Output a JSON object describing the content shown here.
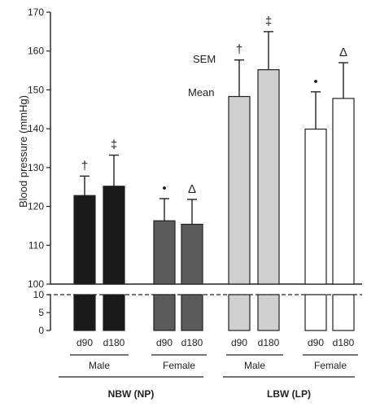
{
  "chart_data": {
    "type": "bar",
    "ylabel": "Blood pressure (mmHg)",
    "yaxis_upper": {
      "min": 100,
      "max": 170,
      "ticks": [
        100,
        110,
        120,
        130,
        140,
        150,
        160,
        170
      ]
    },
    "yaxis_lower": {
      "min": 0,
      "max": 10,
      "ticks": [
        0,
        5,
        10
      ]
    },
    "axis_break": true,
    "annotations": {
      "sem": "SEM",
      "mean": "Mean"
    },
    "groups": [
      {
        "label": "NBW (NP)",
        "subgroups": [
          {
            "label": "Male",
            "bars": [
              {
                "label": "d90",
                "mean": 122.8,
                "sem": 5.0,
                "marker": "†",
                "color": "#1a1a1a"
              },
              {
                "label": "d180",
                "mean": 125.2,
                "sem": 8.0,
                "marker": "‡",
                "color": "#1a1a1a"
              }
            ]
          },
          {
            "label": "Female",
            "bars": [
              {
                "label": "d90",
                "mean": 116.3,
                "sem": 5.7,
                "marker": "•",
                "color": "#5b5b5b"
              },
              {
                "label": "d180",
                "mean": 115.4,
                "sem": 6.4,
                "marker": "Δ",
                "color": "#5b5b5b"
              }
            ]
          }
        ]
      },
      {
        "label": "LBW (LP)",
        "subgroups": [
          {
            "label": "Male",
            "bars": [
              {
                "label": "d90",
                "mean": 148.3,
                "sem": 9.4,
                "marker": "†",
                "color": "#cfcfcf"
              },
              {
                "label": "d180",
                "mean": 155.2,
                "sem": 9.8,
                "marker": "‡",
                "color": "#cfcfcf"
              }
            ]
          },
          {
            "label": "Female",
            "bars": [
              {
                "label": "d90",
                "mean": 139.9,
                "sem": 9.6,
                "marker": "•",
                "color": "#ffffff"
              },
              {
                "label": "d180",
                "mean": 147.8,
                "sem": 9.2,
                "marker": "Δ",
                "color": "#ffffff"
              }
            ]
          }
        ]
      }
    ]
  }
}
